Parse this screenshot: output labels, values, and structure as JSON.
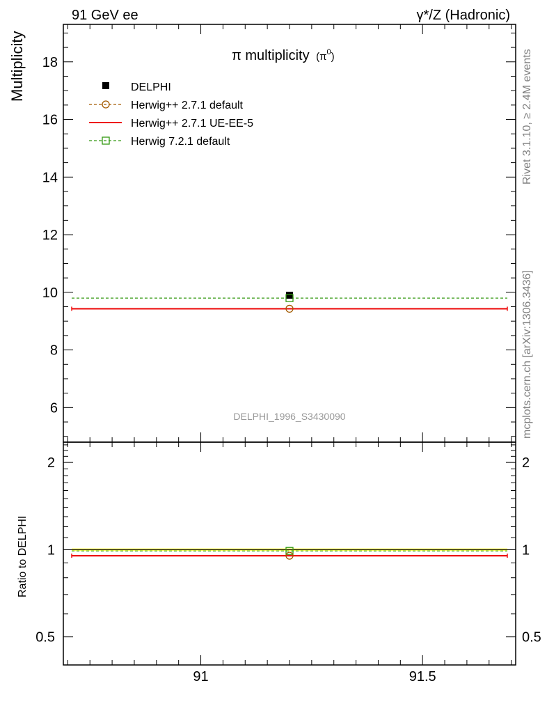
{
  "header": {
    "left": "91 GeV ee",
    "right": "γ*/Z (Hadronic)"
  },
  "side_text": {
    "rivet": "Rivet 3.1.10, ≥ 2.4M events",
    "mcplots": "mcplots.cern.ch [arXiv:1306.3436]"
  },
  "analysis_id": "DELPHI_1996_S3430090",
  "chart_data": [
    {
      "type": "line",
      "title": "π multiplicity (π⁰)",
      "title_main": "π multiplicity",
      "title_sub": "(π",
      "title_sup": "0",
      "title_close": ")",
      "ylabel": "Multiplicity",
      "xlim": [
        90.69,
        91.71
      ],
      "ylim": [
        4.8,
        19.3
      ],
      "yticks": [
        6,
        8,
        10,
        12,
        14,
        16,
        18
      ],
      "ytick_labels": [
        "6",
        "8",
        "10",
        "12",
        "14",
        "16",
        "18"
      ],
      "legend_position": "top-left",
      "legend": [
        {
          "label": "DELPHI",
          "color": "#000000",
          "marker": "filled-square"
        },
        {
          "label": "Herwig++ 2.7.1 default",
          "color": "#a35a00",
          "marker": "open-circle",
          "dash": true
        },
        {
          "label": "Herwig++ 2.7.1 UE-EE-5",
          "color": "#ee1111",
          "marker": "none",
          "dash": false
        },
        {
          "label": "Herwig 7.2.1 default",
          "color": "#339911",
          "marker": "open-square",
          "dash": true
        }
      ],
      "series": [
        {
          "name": "DELPHI",
          "x": 91.2,
          "y": 9.9,
          "color": "#000000"
        },
        {
          "name": "Herwig++ 2.7.1 default",
          "x": 91.2,
          "y": 9.43,
          "xrange": [
            90.69,
            91.71
          ],
          "color": "#a35a00"
        },
        {
          "name": "Herwig++ 2.7.1 UE-EE-5",
          "x": 91.2,
          "y": 9.43,
          "xrange": [
            90.69,
            91.71
          ],
          "color": "#ee1111"
        },
        {
          "name": "Herwig 7.2.1 default",
          "x": 91.2,
          "y": 9.8,
          "xrange": [
            90.69,
            91.71
          ],
          "color": "#339911"
        }
      ],
      "grid": false
    },
    {
      "type": "line",
      "ylabel": "Ratio to DELPHI",
      "xlim": [
        90.69,
        91.71
      ],
      "ylim_log": [
        0.4,
        2.35
      ],
      "yticks": [
        0.5,
        1,
        2
      ],
      "ytick_labels": [
        "0.5",
        "1",
        "2"
      ],
      "xticks": [
        91,
        91.5
      ],
      "xtick_labels": [
        "91",
        "91.5"
      ],
      "band": {
        "low": 0.99,
        "high": 1.01,
        "color": "#ffff55"
      },
      "series": [
        {
          "name": "Herwig++ 2.7.1 default",
          "x": 91.2,
          "y": 0.953,
          "color": "#a35a00"
        },
        {
          "name": "Herwig++ 2.7.1 UE-EE-5",
          "x": 91.2,
          "y": 0.953,
          "color": "#ee1111"
        },
        {
          "name": "Herwig 7.2.1 default",
          "x": 91.2,
          "y": 0.99,
          "color": "#339911"
        }
      ],
      "grid": false
    }
  ]
}
